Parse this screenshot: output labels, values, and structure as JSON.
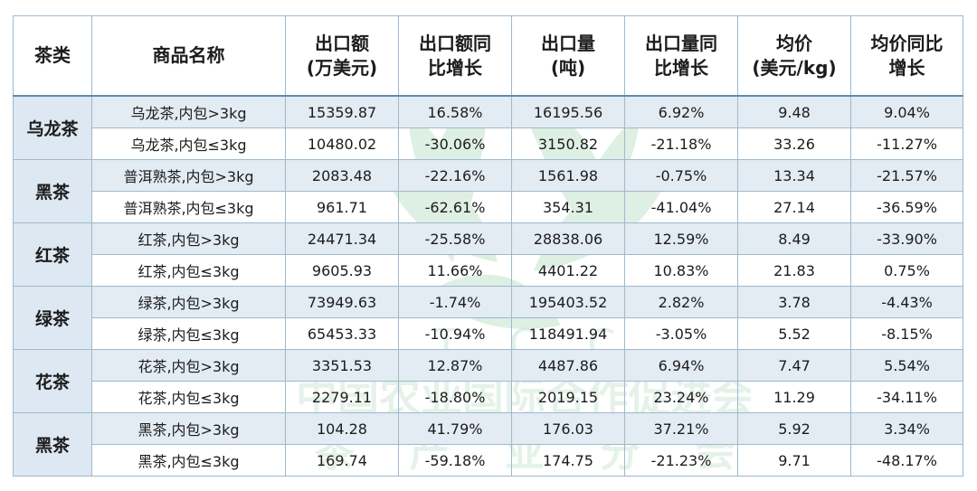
{
  "headers": [
    "茶类",
    "商品名称",
    "出口额\n(万美元)",
    "出口额同\n比增长",
    "出口量\n(吨)",
    "出口量同\n比增长",
    "均价\n(美元/kg)",
    "均价同比\n增长"
  ],
  "groups": [
    {
      "category": "乌龙茶",
      "rows": [
        [
          "乌龙茶,内包>3kg",
          "15359.87",
          "16.58%",
          "16195.56",
          "6.92%",
          "9.48",
          "9.04%"
        ],
        [
          "乌龙茶,内包≤3kg",
          "10480.02",
          "-30.06%",
          "3150.82",
          "-21.18%",
          "33.26",
          "-11.27%"
        ]
      ]
    },
    {
      "category": "黑茶",
      "rows": [
        [
          "普洱熟茶,内包>3kg",
          "2083.48",
          "-22.16%",
          "1561.98",
          "-0.75%",
          "13.34",
          "-21.57%"
        ],
        [
          "普洱熟茶,内包≤3kg",
          "961.71",
          "-62.61%",
          "354.31",
          "-41.04%",
          "27.14",
          "-36.59%"
        ]
      ]
    },
    {
      "category": "红茶",
      "rows": [
        [
          "红茶,内包>3kg",
          "24471.34",
          "-25.58%",
          "28838.06",
          "12.59%",
          "8.49",
          "-33.90%"
        ],
        [
          "红茶,内包≤3kg",
          "9605.93",
          "11.66%",
          "4401.22",
          "10.83%",
          "21.83",
          "0.75%"
        ]
      ]
    },
    {
      "category": "绿茶",
      "rows": [
        [
          "绿茶,内包>3kg",
          "73949.63",
          "-1.74%",
          "195403.52",
          "2.82%",
          "3.78",
          "-4.43%"
        ],
        [
          "绿茶,内包≤3kg",
          "65453.33",
          "-10.94%",
          "118491.94",
          "-3.05%",
          "5.52",
          "-8.15%"
        ]
      ]
    },
    {
      "category": "花茶",
      "rows": [
        [
          "花茶,内包>3kg",
          "3351.53",
          "12.87%",
          "4487.86",
          "6.94%",
          "7.47",
          "5.54%"
        ],
        [
          "花茶,内包≤3kg",
          "2279.11",
          "-18.80%",
          "2019.15",
          "23.24%",
          "11.29",
          "-34.11%"
        ]
      ]
    },
    {
      "category": "黑茶",
      "rows": [
        [
          "黑茶,内包>3kg",
          "104.28",
          "41.79%",
          "176.03",
          "37.21%",
          "5.92",
          "3.34%"
        ],
        [
          "黑茶,内包≤3kg",
          "169.74",
          "-59.18%",
          "174.75",
          "-21.23%",
          "9.71",
          "-48.17%"
        ]
      ]
    }
  ],
  "watermark": {
    "letters": "T    C    C",
    "line1": "中国农业国际合作促进会",
    "line2": "茶    产    业    分    会",
    "color": "#3aa35a"
  }
}
